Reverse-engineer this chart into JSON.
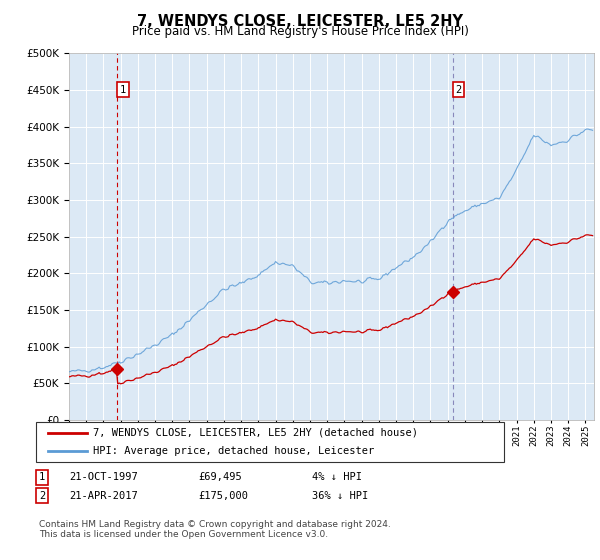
{
  "title": "7, WENDYS CLOSE, LEICESTER, LE5 2HY",
  "subtitle": "Price paid vs. HM Land Registry's House Price Index (HPI)",
  "legend_line1": "7, WENDYS CLOSE, LEICESTER, LE5 2HY (detached house)",
  "legend_line2": "HPI: Average price, detached house, Leicester",
  "sale1_label": "1",
  "sale1_date": "21-OCT-1997",
  "sale1_price": "£69,495",
  "sale1_hpi": "4% ↓ HPI",
  "sale2_label": "2",
  "sale2_date": "21-APR-2017",
  "sale2_price": "£175,000",
  "sale2_hpi": "36% ↓ HPI",
  "footnote": "Contains HM Land Registry data © Crown copyright and database right 2024.\nThis data is licensed under the Open Government Licence v3.0.",
  "sale1_year": 1997.8,
  "sale2_year": 2017.3,
  "sale1_price_val": 69495,
  "sale2_price_val": 175000,
  "hpi_color": "#5b9bd5",
  "price_color": "#cc0000",
  "vline1_color": "#cc0000",
  "vline2_color": "#8888bb",
  "bg_color": "#dce9f5",
  "plot_bg": "#dce9f5",
  "ylim": [
    0,
    500000
  ],
  "xlim_start": 1995,
  "xlim_end": 2025.5,
  "marker_box_color": "#cc0000"
}
